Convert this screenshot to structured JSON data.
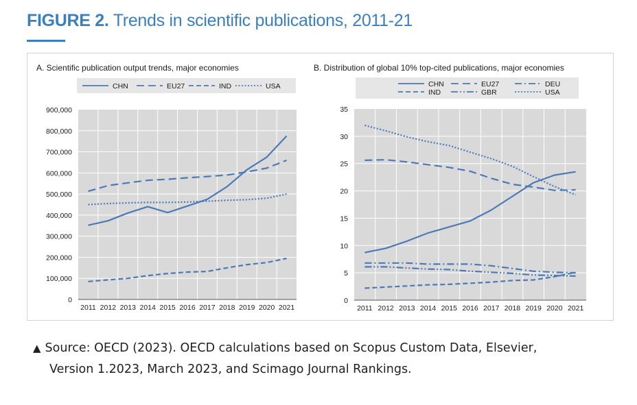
{
  "figure": {
    "label": "FIGURE 2.",
    "title": "Trends in scientific publications, 2011-21",
    "accent_color": "#3a7fc0"
  },
  "source": {
    "marker_icon": "triangle-up-icon",
    "marker": "▲",
    "line1": "Source: OECD (2023). OECD calculations based on Scopus Custom Data, Elsevier,",
    "line2": "Version 1.2023, March 2023, and Scimago Journal Rankings."
  },
  "colors": {
    "series": "#4a79b8",
    "plot_background": "#d9d9d9",
    "gridline": "#ffffff",
    "legend_background": "#e6e6e6"
  },
  "chart_data": [
    {
      "type": "line",
      "title": "A. Scientific publication output trends, major economies",
      "xlabel": "",
      "ylabel": "",
      "x": [
        2011,
        2012,
        2013,
        2014,
        2015,
        2016,
        2017,
        2018,
        2019,
        2020,
        2021
      ],
      "ylim": [
        0,
        900000
      ],
      "yticks": [
        0,
        100000,
        200000,
        300000,
        400000,
        500000,
        600000,
        700000,
        800000,
        900000
      ],
      "ytick_labels": [
        "0",
        "100,000",
        "200,000",
        "300,000",
        "400,000",
        "500,000",
        "600,000",
        "700,000",
        "800,000",
        "900,000"
      ],
      "grid": true,
      "legend": "top",
      "series": [
        {
          "name": "CHN",
          "style": "solid",
          "values": [
            352000,
            373000,
            410000,
            440000,
            412000,
            443000,
            475000,
            535000,
            615000,
            675000,
            775000
          ]
        },
        {
          "name": "EU27",
          "style": "dashed",
          "values": [
            513000,
            540000,
            553000,
            565000,
            570000,
            577000,
            583000,
            590000,
            605000,
            623000,
            660000
          ]
        },
        {
          "name": "IND",
          "style": "dashed-fine",
          "values": [
            85000,
            93000,
            100000,
            113000,
            123000,
            130000,
            133000,
            150000,
            165000,
            175000,
            195000
          ]
        },
        {
          "name": "USA",
          "style": "dotted",
          "values": [
            450000,
            455000,
            458000,
            460000,
            460000,
            462000,
            466000,
            470000,
            473000,
            480000,
            500000
          ]
        }
      ]
    },
    {
      "type": "line",
      "title": "B. Distribution of global 10% top-cited publications, major economies",
      "xlabel": "",
      "ylabel": "",
      "x": [
        2011,
        2012,
        2013,
        2014,
        2015,
        2016,
        2017,
        2018,
        2019,
        2020,
        2021
      ],
      "ylim": [
        0,
        35
      ],
      "yticks": [
        0,
        5,
        10,
        15,
        20,
        25,
        30,
        35
      ],
      "ytick_labels": [
        "0",
        "5",
        "10",
        "15",
        "20",
        "25",
        "30",
        "35"
      ],
      "grid": true,
      "legend": "top",
      "series": [
        {
          "name": "CHN",
          "style": "solid",
          "values": [
            8.7,
            9.5,
            10.8,
            12.3,
            13.4,
            14.5,
            16.5,
            19.0,
            21.5,
            22.9,
            23.5
          ]
        },
        {
          "name": "EU27",
          "style": "dashed",
          "values": [
            25.6,
            25.7,
            25.3,
            24.8,
            24.3,
            23.6,
            22.3,
            21.2,
            20.7,
            20.1,
            20.2
          ]
        },
        {
          "name": "DEU",
          "style": "dash-dot",
          "values": [
            6.8,
            6.8,
            6.8,
            6.6,
            6.6,
            6.6,
            6.3,
            5.8,
            5.3,
            5.1,
            5.0
          ]
        },
        {
          "name": "IND",
          "style": "dashed-fine",
          "values": [
            2.2,
            2.4,
            2.6,
            2.8,
            2.9,
            3.1,
            3.3,
            3.6,
            3.7,
            4.3,
            5.1
          ]
        },
        {
          "name": "GBR",
          "style": "dash-dot-dot",
          "values": [
            6.1,
            6.1,
            5.9,
            5.7,
            5.6,
            5.3,
            5.1,
            4.9,
            4.6,
            4.5,
            4.4
          ]
        },
        {
          "name": "USA",
          "style": "dotted",
          "values": [
            32.0,
            31.0,
            29.9,
            29.0,
            28.3,
            27.1,
            25.9,
            24.5,
            22.6,
            20.8,
            19.3
          ]
        }
      ]
    }
  ]
}
